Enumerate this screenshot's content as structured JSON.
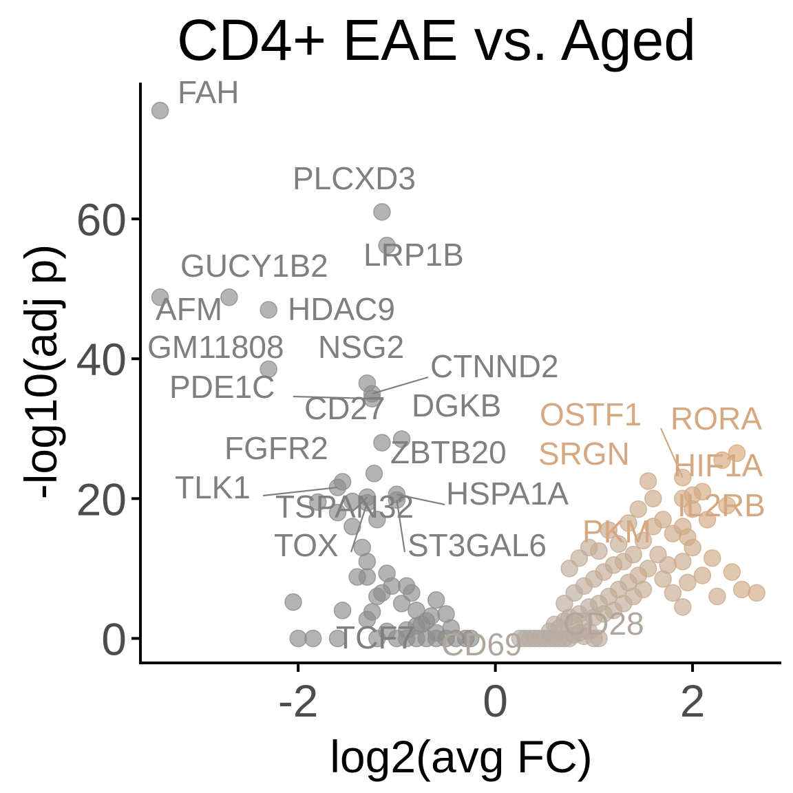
{
  "chart_data": {
    "type": "scatter",
    "title": "CD4+ EAE vs. Aged",
    "xlabel": "log2(avg FC)",
    "ylabel": "-log10(adj p)",
    "xlim": [
      -3.6,
      2.9
    ],
    "ylim": [
      -3.5,
      79.5
    ],
    "x_ticks": [
      -2,
      0,
      2
    ],
    "y_ticks": [
      0,
      20,
      40,
      60
    ],
    "grid": false,
    "legend": "none",
    "colors": {
      "down": "#8c8c8c",
      "up_strong": "#dba878",
      "up_weak": "#b3aca6",
      "label_down": "#7f7f7f",
      "label_up": "#d6a882",
      "label_neutral": "#b0a69c"
    },
    "labeled_points": [
      {
        "gene": "FAH",
        "x": -3.4,
        "y": 75.5
      },
      {
        "gene": "PLCXD3",
        "x": -1.15,
        "y": 61.0
      },
      {
        "gene": "LRP1B",
        "x": -1.1,
        "y": 56.2
      },
      {
        "gene": "GUCY1B2",
        "x": -2.7,
        "y": 48.8
      },
      {
        "gene": "AFM",
        "x": -3.4,
        "y": 48.8
      },
      {
        "gene": "HDAC9",
        "x": -2.3,
        "y": 47.0
      },
      {
        "gene": "GM11808",
        "x": -2.3,
        "y": 38.5
      },
      {
        "gene": "NSG2",
        "x": -1.3,
        "y": 36.5
      },
      {
        "gene": "CTNND2",
        "x": -1.25,
        "y": 35.0
      },
      {
        "gene": "PDE1C",
        "x": -1.25,
        "y": 34.3
      },
      {
        "gene": "CD27",
        "x": -1.15,
        "y": 28.0
      },
      {
        "gene": "DGKB",
        "x": -0.95,
        "y": 28.5
      },
      {
        "gene": "FGFR2",
        "x": -1.55,
        "y": 22.4
      },
      {
        "gene": "ZBTB20",
        "x": -1.23,
        "y": 23.6
      },
      {
        "gene": "TLK1",
        "x": -1.6,
        "y": 21.6
      },
      {
        "gene": "HSPA1A",
        "x": -1.0,
        "y": 20.6
      },
      {
        "gene": "TSPAN32",
        "x": -1.3,
        "y": 20.2
      },
      {
        "gene": "TOX",
        "x": -1.3,
        "y": 19.4
      },
      {
        "gene": "ST3GAL6",
        "x": -1.0,
        "y": 19.8
      },
      {
        "gene": "TCF7",
        "x": -1.6,
        "y": 1.0
      },
      {
        "gene": "CD69",
        "x": -0.5,
        "y": 0.0
      },
      {
        "gene": "CD28",
        "x": 0.8,
        "y": 0.5
      },
      {
        "gene": "OSTF1",
        "x": 1.6,
        "y": 20.0
      },
      {
        "gene": "SRGN",
        "x": 1.35,
        "y": 16.5
      },
      {
        "gene": "RORA",
        "x": 1.9,
        "y": 23.0
      },
      {
        "gene": "HIF1A",
        "x": 1.9,
        "y": 20.0
      },
      {
        "gene": "IL2RB",
        "x": 1.9,
        "y": 16.0
      },
      {
        "gene": "PKM",
        "x": 1.5,
        "y": 14.0
      }
    ],
    "points": [
      {
        "x": -3.4,
        "y": 75.5
      },
      {
        "x": -1.15,
        "y": 61.0
      },
      {
        "x": -1.1,
        "y": 56.2
      },
      {
        "x": -3.4,
        "y": 48.8
      },
      {
        "x": -2.7,
        "y": 48.8
      },
      {
        "x": -2.3,
        "y": 47.0
      },
      {
        "x": -2.3,
        "y": 38.5
      },
      {
        "x": -1.3,
        "y": 36.5
      },
      {
        "x": -1.25,
        "y": 35.0
      },
      {
        "x": -1.25,
        "y": 34.3
      },
      {
        "x": -1.15,
        "y": 28.0
      },
      {
        "x": -0.95,
        "y": 28.5
      },
      {
        "x": -1.55,
        "y": 22.4
      },
      {
        "x": -1.23,
        "y": 23.6
      },
      {
        "x": -1.6,
        "y": 21.6
      },
      {
        "x": -1.8,
        "y": 19.5
      },
      {
        "x": -1.6,
        "y": 18.0
      },
      {
        "x": -1.45,
        "y": 19.6
      },
      {
        "x": -1.3,
        "y": 20.2
      },
      {
        "x": -1.0,
        "y": 20.6
      },
      {
        "x": -1.0,
        "y": 19.8
      },
      {
        "x": -1.3,
        "y": 19.4
      },
      {
        "x": -1.2,
        "y": 17.0
      },
      {
        "x": -1.45,
        "y": 16.0
      },
      {
        "x": -1.35,
        "y": 13.0
      },
      {
        "x": -1.3,
        "y": 11.0
      },
      {
        "x": -1.4,
        "y": 8.8
      },
      {
        "x": -1.3,
        "y": 8.8
      },
      {
        "x": -1.1,
        "y": 9.3
      },
      {
        "x": -1.05,
        "y": 7.5
      },
      {
        "x": -1.2,
        "y": 6.0
      },
      {
        "x": -1.25,
        "y": 3.8
      },
      {
        "x": -1.3,
        "y": 2.7
      },
      {
        "x": -0.9,
        "y": 7.5
      },
      {
        "x": -0.85,
        "y": 6.5
      },
      {
        "x": -0.95,
        "y": 5.0
      },
      {
        "x": -0.8,
        "y": 4.0
      },
      {
        "x": -0.6,
        "y": 5.5
      },
      {
        "x": -0.5,
        "y": 3.5
      },
      {
        "x": -0.7,
        "y": 2.5
      },
      {
        "x": -2.05,
        "y": 5.2
      },
      {
        "x": -1.55,
        "y": 4.0
      },
      {
        "x": -1.15,
        "y": 6.5
      },
      {
        "x": -0.75,
        "y": 2.0
      },
      {
        "x": -0.45,
        "y": 1.5
      },
      {
        "x": -2.0,
        "y": 0.0
      },
      {
        "x": -1.85,
        "y": 0.0
      },
      {
        "x": -1.6,
        "y": 0.0
      },
      {
        "x": -1.2,
        "y": 0.0
      },
      {
        "x": -1.0,
        "y": 0.0
      },
      {
        "x": -0.9,
        "y": 0.0
      },
      {
        "x": -0.8,
        "y": 0.0
      },
      {
        "x": -0.7,
        "y": 0.0
      },
      {
        "x": -0.6,
        "y": 0.0
      },
      {
        "x": -0.5,
        "y": 0.0
      },
      {
        "x": -0.4,
        "y": 0.0
      },
      {
        "x": -0.3,
        "y": 0.0
      },
      {
        "x": -0.25,
        "y": 0.0
      },
      {
        "x": -0.9,
        "y": 1.2
      },
      {
        "x": -0.6,
        "y": 0.8
      },
      {
        "x": -0.8,
        "y": 1.8
      },
      {
        "x": -1.1,
        "y": 1.0
      },
      {
        "x": -0.65,
        "y": 3.2
      },
      {
        "x": 0.25,
        "y": 0.0
      },
      {
        "x": 0.3,
        "y": 0.0
      },
      {
        "x": 0.35,
        "y": 0.0
      },
      {
        "x": 0.4,
        "y": 0.0
      },
      {
        "x": 0.45,
        "y": 0.0
      },
      {
        "x": 0.5,
        "y": 0.0
      },
      {
        "x": 0.55,
        "y": 0.0
      },
      {
        "x": 0.6,
        "y": 0.0
      },
      {
        "x": 0.65,
        "y": 0.0
      },
      {
        "x": 0.7,
        "y": 0.0
      },
      {
        "x": 0.75,
        "y": 0.0
      },
      {
        "x": 0.8,
        "y": 0.5
      },
      {
        "x": 0.85,
        "y": 0.8
      },
      {
        "x": 0.9,
        "y": 0.3
      },
      {
        "x": 0.95,
        "y": 1.0
      },
      {
        "x": 1.0,
        "y": 0.0
      },
      {
        "x": 1.05,
        "y": 0.0
      },
      {
        "x": 0.55,
        "y": 1.0
      },
      {
        "x": 0.6,
        "y": 2.0
      },
      {
        "x": 0.65,
        "y": 1.5
      },
      {
        "x": 0.7,
        "y": 2.5
      },
      {
        "x": 0.75,
        "y": 3.0
      },
      {
        "x": 0.8,
        "y": 2.0
      },
      {
        "x": 0.85,
        "y": 3.5
      },
      {
        "x": 0.9,
        "y": 2.5
      },
      {
        "x": 0.95,
        "y": 4.5
      },
      {
        "x": 1.0,
        "y": 3.0
      },
      {
        "x": 1.05,
        "y": 5.0
      },
      {
        "x": 1.1,
        "y": 3.5
      },
      {
        "x": 1.15,
        "y": 6.0
      },
      {
        "x": 1.2,
        "y": 4.0
      },
      {
        "x": 1.25,
        "y": 7.0
      },
      {
        "x": 1.3,
        "y": 5.0
      },
      {
        "x": 1.35,
        "y": 8.0
      },
      {
        "x": 1.4,
        "y": 6.0
      },
      {
        "x": 1.45,
        "y": 9.0
      },
      {
        "x": 1.5,
        "y": 7.0
      },
      {
        "x": 0.7,
        "y": 5.0
      },
      {
        "x": 0.8,
        "y": 6.5
      },
      {
        "x": 0.9,
        "y": 7.5
      },
      {
        "x": 1.0,
        "y": 8.5
      },
      {
        "x": 1.1,
        "y": 9.5
      },
      {
        "x": 1.2,
        "y": 10.5
      },
      {
        "x": 1.3,
        "y": 11.0
      },
      {
        "x": 1.4,
        "y": 12.0
      },
      {
        "x": 1.05,
        "y": 12.5
      },
      {
        "x": 1.15,
        "y": 15.5
      },
      {
        "x": 0.75,
        "y": 10.0
      },
      {
        "x": 0.85,
        "y": 11.5
      },
      {
        "x": 0.95,
        "y": 13.0
      },
      {
        "x": 1.35,
        "y": 16.5
      },
      {
        "x": 1.5,
        "y": 14.0
      },
      {
        "x": 1.6,
        "y": 16.0
      },
      {
        "x": 1.65,
        "y": 12.0
      },
      {
        "x": 1.55,
        "y": 10.0
      },
      {
        "x": 1.7,
        "y": 8.5
      },
      {
        "x": 1.75,
        "y": 10.5
      },
      {
        "x": 1.6,
        "y": 20.0
      },
      {
        "x": 1.55,
        "y": 22.5
      },
      {
        "x": 1.9,
        "y": 23.0
      },
      {
        "x": 1.9,
        "y": 20.0
      },
      {
        "x": 1.9,
        "y": 16.0
      },
      {
        "x": 1.95,
        "y": 14.5
      },
      {
        "x": 2.0,
        "y": 18.5
      },
      {
        "x": 2.0,
        "y": 13.0
      },
      {
        "x": 1.9,
        "y": 11.0
      },
      {
        "x": 1.95,
        "y": 8.0
      },
      {
        "x": 1.8,
        "y": 6.5
      },
      {
        "x": 1.9,
        "y": 4.5
      },
      {
        "x": 2.1,
        "y": 21.0
      },
      {
        "x": 2.15,
        "y": 17.0
      },
      {
        "x": 2.1,
        "y": 9.0
      },
      {
        "x": 2.2,
        "y": 11.5
      },
      {
        "x": 2.25,
        "y": 6.0
      },
      {
        "x": 2.3,
        "y": 25.5
      },
      {
        "x": 2.35,
        "y": 19.0
      },
      {
        "x": 2.4,
        "y": 9.5
      },
      {
        "x": 2.45,
        "y": 26.5
      },
      {
        "x": 2.5,
        "y": 7.0
      },
      {
        "x": 2.65,
        "y": 6.5
      },
      {
        "x": 2.0,
        "y": 20.5
      },
      {
        "x": 1.7,
        "y": 17.0
      },
      {
        "x": 1.8,
        "y": 15.0
      },
      {
        "x": 1.25,
        "y": 13.5
      },
      {
        "x": 1.45,
        "y": 18.5
      }
    ]
  }
}
